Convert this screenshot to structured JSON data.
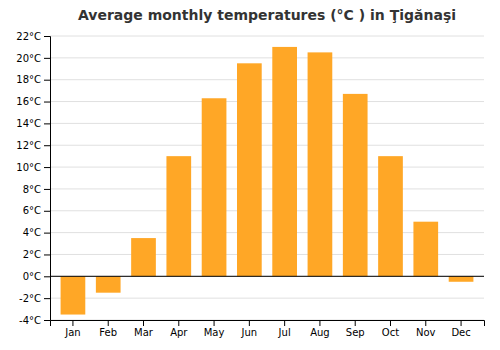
{
  "chart_data": {
    "type": "bar",
    "title": "Average monthly temperatures (°C ) in Ţigănaşi",
    "categories": [
      "Jan",
      "Feb",
      "Mar",
      "Apr",
      "May",
      "Jun",
      "Jul",
      "Aug",
      "Sep",
      "Oct",
      "Nov",
      "Dec"
    ],
    "values": [
      -3.5,
      -1.5,
      3.5,
      11.0,
      16.3,
      19.5,
      21.0,
      20.5,
      16.7,
      11.0,
      5.0,
      -0.5
    ],
    "color": "#FFA726",
    "ylim": [
      -4,
      22
    ],
    "yticks": [
      {
        "value": -4,
        "label": "-4°C"
      },
      {
        "value": -2,
        "label": "-2°C"
      },
      {
        "value": 0,
        "label": "0°C"
      },
      {
        "value": 2,
        "label": "2°C"
      },
      {
        "value": 4,
        "label": "4°C"
      },
      {
        "value": 6,
        "label": "6°C"
      },
      {
        "value": 8,
        "label": "8°C"
      },
      {
        "value": 10,
        "label": "10°C"
      },
      {
        "value": 12,
        "label": "12°C"
      },
      {
        "value": 14,
        "label": "14°C"
      },
      {
        "value": 16,
        "label": "16°C"
      },
      {
        "value": 18,
        "label": "18°C"
      },
      {
        "value": 20,
        "label": "20°C"
      },
      {
        "value": 22,
        "label": "22°C"
      }
    ],
    "grid": true
  }
}
